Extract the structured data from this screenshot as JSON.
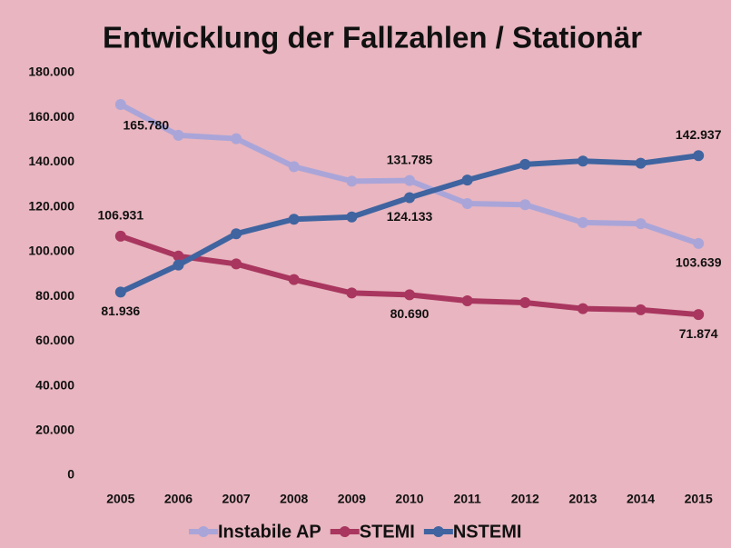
{
  "chart_data": {
    "type": "line",
    "title": "Entwicklung der Fallzahlen / Stationär",
    "categories": [
      "2005",
      "2006",
      "2007",
      "2008",
      "2009",
      "2010",
      "2011",
      "2012",
      "2013",
      "2014",
      "2015"
    ],
    "series": [
      {
        "name": "Instabile AP",
        "color": "#aaa5d9",
        "values": [
          165780,
          152000,
          150500,
          138000,
          131500,
          131785,
          121500,
          121000,
          113000,
          112500,
          103639
        ],
        "value_labels": [
          "165.780",
          null,
          null,
          null,
          null,
          "131.785",
          null,
          null,
          null,
          null,
          "103.639"
        ]
      },
      {
        "name": "STEMI",
        "color": "#a9365f",
        "values": [
          106931,
          98000,
          94500,
          87500,
          81500,
          80690,
          78000,
          77200,
          74500,
          74000,
          71874
        ],
        "value_labels": [
          "106.931",
          null,
          null,
          null,
          null,
          "80.690",
          null,
          null,
          null,
          null,
          "71.874"
        ]
      },
      {
        "name": "NSTEMI",
        "color": "#3f64a0",
        "values": [
          81936,
          94000,
          108000,
          114500,
          115500,
          124133,
          132000,
          139000,
          140500,
          139500,
          142937
        ],
        "value_labels": [
          "81.936",
          null,
          null,
          null,
          null,
          "124.133",
          null,
          null,
          null,
          null,
          "142.937"
        ]
      }
    ],
    "ylim": [
      0,
      180000
    ],
    "yticks": [
      0,
      {
        "value": 20000,
        "label": "20.000"
      },
      {
        "value": 40000,
        "label": "40.000"
      },
      {
        "value": 60000,
        "label": "60.000"
      },
      {
        "value": 80000,
        "label": "80.000"
      },
      {
        "value": 100000,
        "label": "100.000"
      },
      {
        "value": 120000,
        "label": "120.000"
      },
      {
        "value": 140000,
        "label": "140.000"
      },
      {
        "value": 160000,
        "label": "160.000"
      },
      {
        "value": 180000,
        "label": "180.000"
      }
    ],
    "legend": "bottom"
  }
}
